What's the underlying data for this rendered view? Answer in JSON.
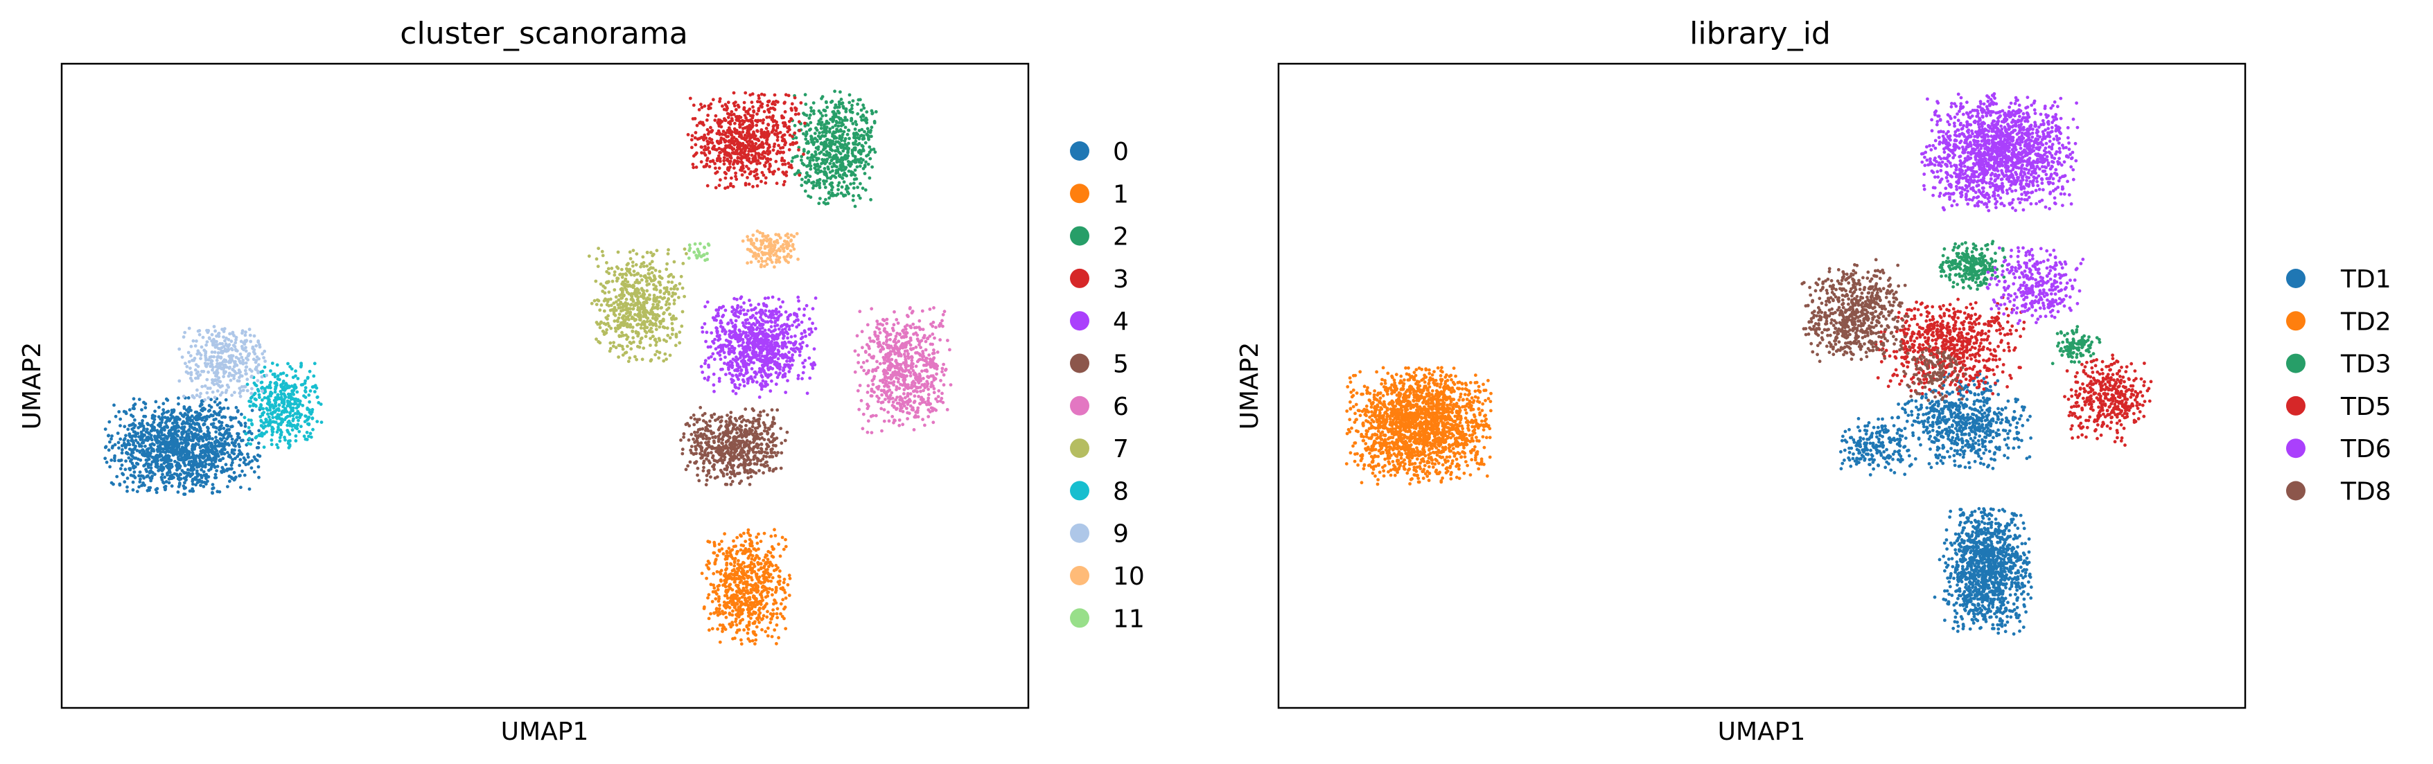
{
  "chart_data": [
    {
      "type": "scatter",
      "title": "cluster_scanorama",
      "xlabel": "UMAP1",
      "ylabel": "UMAP2",
      "xlim": [
        -12,
        12
      ],
      "ylim": [
        -8,
        8
      ],
      "grid": false,
      "ticks": "none",
      "legend_placement": "right-outside",
      "series": [
        {
          "name": "0",
          "color": "#1f77b4",
          "clusters": [
            {
              "cx": -9.0,
              "cy": -1.5,
              "sx": 1.6,
              "sy": 1.0,
              "n": 1300
            }
          ]
        },
        {
          "name": "1",
          "color": "#ff7f0e",
          "clusters": [
            {
              "cx": 5.0,
              "cy": -5.0,
              "sx": 0.9,
              "sy": 1.2,
              "n": 650
            }
          ]
        },
        {
          "name": "2",
          "color": "#279e68",
          "clusters": [
            {
              "cx": 7.2,
              "cy": 5.9,
              "sx": 0.9,
              "sy": 1.2,
              "n": 600
            }
          ]
        },
        {
          "name": "3",
          "color": "#d62728",
          "clusters": [
            {
              "cx": 5.0,
              "cy": 6.1,
              "sx": 1.2,
              "sy": 1.0,
              "n": 700
            }
          ]
        },
        {
          "name": "4",
          "color": "#aa40fc",
          "clusters": [
            {
              "cx": 5.3,
              "cy": 1.0,
              "sx": 1.2,
              "sy": 1.0,
              "n": 850
            }
          ]
        },
        {
          "name": "5",
          "color": "#8c564b",
          "clusters": [
            {
              "cx": 4.7,
              "cy": -1.5,
              "sx": 1.1,
              "sy": 0.8,
              "n": 600
            }
          ]
        },
        {
          "name": "6",
          "color": "#e377c2",
          "clusters": [
            {
              "cx": 8.9,
              "cy": 0.4,
              "sx": 1.0,
              "sy": 1.3,
              "n": 650
            }
          ]
        },
        {
          "name": "7",
          "color": "#b5bd61",
          "clusters": [
            {
              "cx": 2.3,
              "cy": 2.0,
              "sx": 1.0,
              "sy": 1.2,
              "n": 600
            }
          ]
        },
        {
          "name": "8",
          "color": "#17becf",
          "clusters": [
            {
              "cx": -6.5,
              "cy": -0.5,
              "sx": 0.8,
              "sy": 0.9,
              "n": 400
            }
          ]
        },
        {
          "name": "9",
          "color": "#aec7e8",
          "clusters": [
            {
              "cx": -8.0,
              "cy": 0.6,
              "sx": 0.9,
              "sy": 0.8,
              "n": 350
            }
          ]
        },
        {
          "name": "10",
          "color": "#ffbb78",
          "clusters": [
            {
              "cx": 5.6,
              "cy": 3.4,
              "sx": 0.6,
              "sy": 0.4,
              "n": 150
            }
          ]
        },
        {
          "name": "11",
          "color": "#98df8a",
          "clusters": [
            {
              "cx": 3.9,
              "cy": 3.3,
              "sx": 0.3,
              "sy": 0.3,
              "n": 25
            }
          ]
        }
      ]
    },
    {
      "type": "scatter",
      "title": "library_id",
      "xlabel": "UMAP1",
      "ylabel": "UMAP2",
      "xlim": [
        -12,
        12
      ],
      "ylim": [
        -8,
        8
      ],
      "grid": false,
      "ticks": "none",
      "legend_placement": "right-outside",
      "series": [
        {
          "name": "TD1",
          "color": "#1f77b4",
          "clusters": [
            {
              "cx": 5.6,
              "cy": -4.6,
              "sx": 0.9,
              "sy": 1.3,
              "n": 1100
            },
            {
              "cx": 5.0,
              "cy": -0.9,
              "sx": 1.4,
              "sy": 1.0,
              "n": 600
            },
            {
              "cx": 2.8,
              "cy": -1.5,
              "sx": 0.8,
              "sy": 0.6,
              "n": 200
            }
          ]
        },
        {
          "name": "TD2",
          "color": "#ff7f0e",
          "clusters": [
            {
              "cx": -8.5,
              "cy": -1.0,
              "sx": 1.5,
              "sy": 1.2,
              "n": 1700
            }
          ]
        },
        {
          "name": "TD3",
          "color": "#279e68",
          "clusters": [
            {
              "cx": 5.2,
              "cy": 3.0,
              "sx": 0.7,
              "sy": 0.5,
              "n": 250
            },
            {
              "cx": 7.8,
              "cy": 1.0,
              "sx": 0.5,
              "sy": 0.4,
              "n": 100
            }
          ]
        },
        {
          "name": "TD5",
          "color": "#d62728",
          "clusters": [
            {
              "cx": 4.7,
              "cy": 1.0,
              "sx": 1.5,
              "sy": 1.0,
              "n": 650
            },
            {
              "cx": 8.6,
              "cy": -0.3,
              "sx": 0.9,
              "sy": 0.9,
              "n": 380
            }
          ]
        },
        {
          "name": "TD6",
          "color": "#aa40fc",
          "clusters": [
            {
              "cx": 5.9,
              "cy": 5.8,
              "sx": 1.6,
              "sy": 1.2,
              "n": 1500
            },
            {
              "cx": 6.8,
              "cy": 2.5,
              "sx": 1.0,
              "sy": 0.8,
              "n": 300
            }
          ]
        },
        {
          "name": "TD8",
          "color": "#8c564b",
          "clusters": [
            {
              "cx": 2.3,
              "cy": 1.8,
              "sx": 1.1,
              "sy": 1.0,
              "n": 600
            },
            {
              "cx": 4.3,
              "cy": 0.3,
              "sx": 0.7,
              "sy": 0.7,
              "n": 120
            }
          ]
        }
      ]
    }
  ]
}
